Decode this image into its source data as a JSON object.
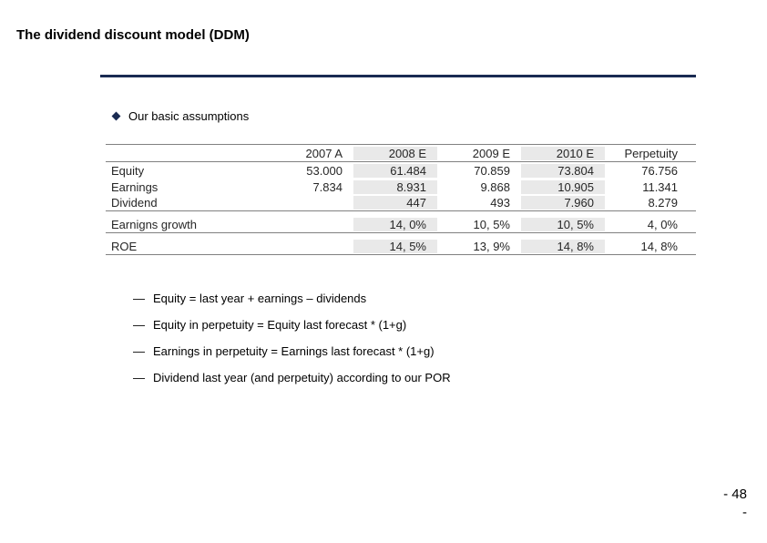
{
  "title": "The dividend discount model (DDM)",
  "main_bullet": "Our basic assumptions",
  "table": {
    "columns": [
      "",
      "2007 A",
      "2008 E",
      "2009 E",
      "2010 E",
      "Perpetuity"
    ],
    "highlight_cols": [
      2,
      4
    ],
    "groups": [
      {
        "rows": [
          {
            "label": "Equity",
            "values": [
              "53.000",
              "61.484",
              "70.859",
              "73.804",
              "76.756"
            ]
          },
          {
            "label": "Earnings",
            "values": [
              "7.834",
              "8.931",
              "9.868",
              "10.905",
              "11.341"
            ]
          },
          {
            "label": "Dividend",
            "values": [
              "",
              "447",
              "493",
              "7.960",
              "8.279"
            ]
          }
        ]
      },
      {
        "rows": [
          {
            "label": "Earnigns growth",
            "values": [
              "",
              "14, 0%",
              "10, 5%",
              "10, 5%",
              "4, 0%"
            ]
          }
        ]
      },
      {
        "rows": [
          {
            "label": "ROE",
            "values": [
              "",
              "14, 5%",
              "13, 9%",
              "14, 8%",
              "14, 8%"
            ]
          }
        ]
      }
    ]
  },
  "notes": [
    "Equity = last year + earnings – dividends",
    "Equity in perpetuity = Equity last forecast * (1+g)",
    "Earnings in perpetuity = Earnings last forecast * (1+g)",
    "Dividend last year (and perpetuity) according to our POR"
  ],
  "page_number_top": "- 48",
  "page_number_bottom": "-",
  "colors": {
    "divider": "#1a2b52",
    "highlight_bg": "#e9e9e9",
    "border": "#808080",
    "text": "#000000",
    "table_text": "#262626",
    "background": "#ffffff"
  },
  "typography": {
    "title_fontsize": 15,
    "body_fontsize": 13,
    "title_weight": "bold"
  }
}
